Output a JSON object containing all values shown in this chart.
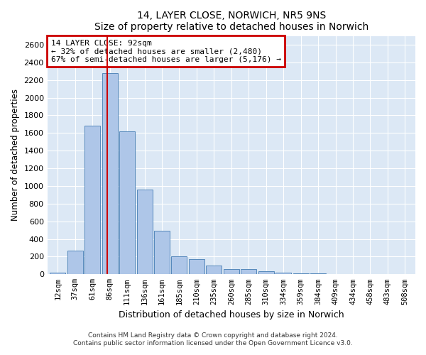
{
  "title": "14, LAYER CLOSE, NORWICH, NR5 9NS",
  "subtitle": "Size of property relative to detached houses in Norwich",
  "xlabel": "Distribution of detached houses by size in Norwich",
  "ylabel": "Number of detached properties",
  "annotation_line1": "14 LAYER CLOSE: 92sqm",
  "annotation_line2": "← 32% of detached houses are smaller (2,480)",
  "annotation_line3": "67% of semi-detached houses are larger (5,176) →",
  "footer_line1": "Contains HM Land Registry data © Crown copyright and database right 2024.",
  "footer_line2": "Contains public sector information licensed under the Open Government Licence v3.0.",
  "categories": [
    "12sqm",
    "37sqm",
    "61sqm",
    "86sqm",
    "111sqm",
    "136sqm",
    "161sqm",
    "185sqm",
    "210sqm",
    "235sqm",
    "260sqm",
    "285sqm",
    "310sqm",
    "334sqm",
    "359sqm",
    "384sqm",
    "409sqm",
    "434sqm",
    "458sqm",
    "483sqm",
    "508sqm"
  ],
  "values": [
    20,
    270,
    1680,
    2280,
    1620,
    960,
    490,
    200,
    175,
    100,
    60,
    55,
    35,
    20,
    10,
    10,
    5,
    5,
    5,
    5,
    5
  ],
  "bar_color": "#aec6e8",
  "bar_edge_color": "#5588bb",
  "vline_color": "#cc0000",
  "annotation_box_color": "#cc0000",
  "background_color": "#dce8f5",
  "ylim": [
    0,
    2700
  ],
  "yticks": [
    0,
    200,
    400,
    600,
    800,
    1000,
    1200,
    1400,
    1600,
    1800,
    2000,
    2200,
    2400,
    2600
  ]
}
